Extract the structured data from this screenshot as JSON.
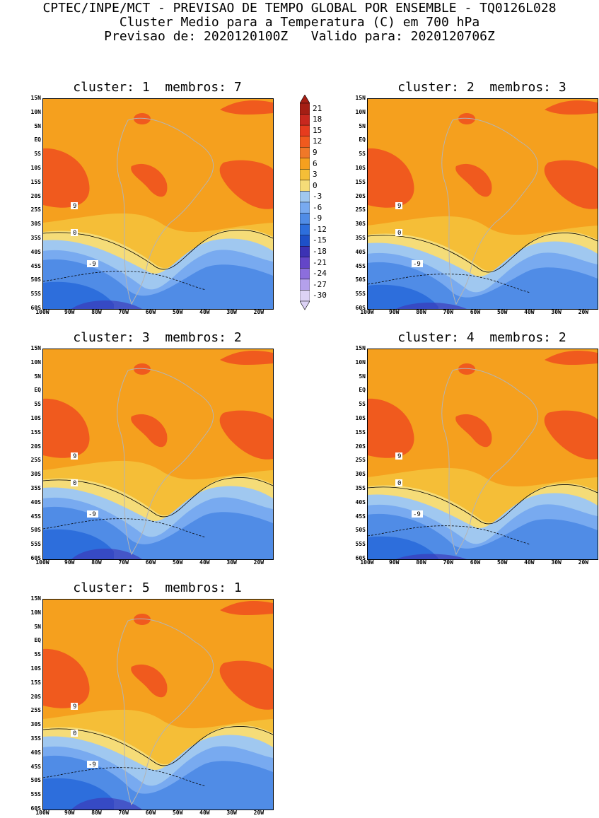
{
  "header": {
    "line1": "CPTEC/INPE/MCT - PREVISAO DE TEMPO GLOBAL POR ENSEMBLE - TQ0126L028",
    "line2": "Cluster Medio para a Temperatura (C) em 700 hPa",
    "line3": "Previsao de: 2020120100Z   Valido para: 2020120706Z"
  },
  "panels": [
    {
      "title": "cluster: 1  membros: 7"
    },
    {
      "title": "cluster: 2  membros: 3"
    },
    {
      "title": "cluster: 3  membros: 2"
    },
    {
      "title": "cluster: 4  membros: 2"
    },
    {
      "title": "cluster: 5  membros: 1"
    }
  ],
  "axes": {
    "lat_labels": [
      "15N",
      "10N",
      "5N",
      "EQ",
      "5S",
      "10S",
      "15S",
      "20S",
      "25S",
      "30S",
      "35S",
      "40S",
      "45S",
      "50S",
      "55S",
      "60S"
    ],
    "lon_labels": [
      "100W",
      "90W",
      "80W",
      "70W",
      "60W",
      "50W",
      "40W",
      "30W",
      "20W"
    ]
  },
  "colorbar": {
    "labels": [
      "21",
      "18",
      "15",
      "12",
      "9",
      "6",
      "3",
      "0",
      "-3",
      "-6",
      "-9",
      "-12",
      "-15",
      "-18",
      "-21",
      "-24",
      "-27",
      "-30"
    ],
    "colors": [
      "#a51e14",
      "#c8281e",
      "#e63c1e",
      "#f05a1e",
      "#f07828",
      "#f5a01e",
      "#f5be37",
      "#f5dc78",
      "#a0c8f0",
      "#78aaf0",
      "#508ce6",
      "#2d6edc",
      "#1e50c8",
      "#3c32b4",
      "#6446c8",
      "#8c6edc",
      "#b4a0eb",
      "#dcd2f5"
    ]
  },
  "contour_labels": [
    "9",
    "0",
    "-9"
  ],
  "chart_data": {
    "type": "heatmap",
    "title": "Cluster Medio para a Temperatura (C) em 700 hPa",
    "variable": "Temperature at 700 hPa (C)",
    "lat_range": [
      -60,
      15
    ],
    "lon_range": [
      -100,
      -15
    ],
    "levels": [
      -30,
      -27,
      -24,
      -21,
      -18,
      -15,
      -12,
      -9,
      -6,
      -3,
      0,
      3,
      6,
      9,
      12,
      15,
      18,
      21
    ],
    "panels": [
      {
        "cluster": 1,
        "members": 7
      },
      {
        "cluster": 2,
        "members": 3
      },
      {
        "cluster": 3,
        "members": 2
      },
      {
        "cluster": 4,
        "members": 2
      },
      {
        "cluster": 5,
        "members": 1
      }
    ]
  }
}
